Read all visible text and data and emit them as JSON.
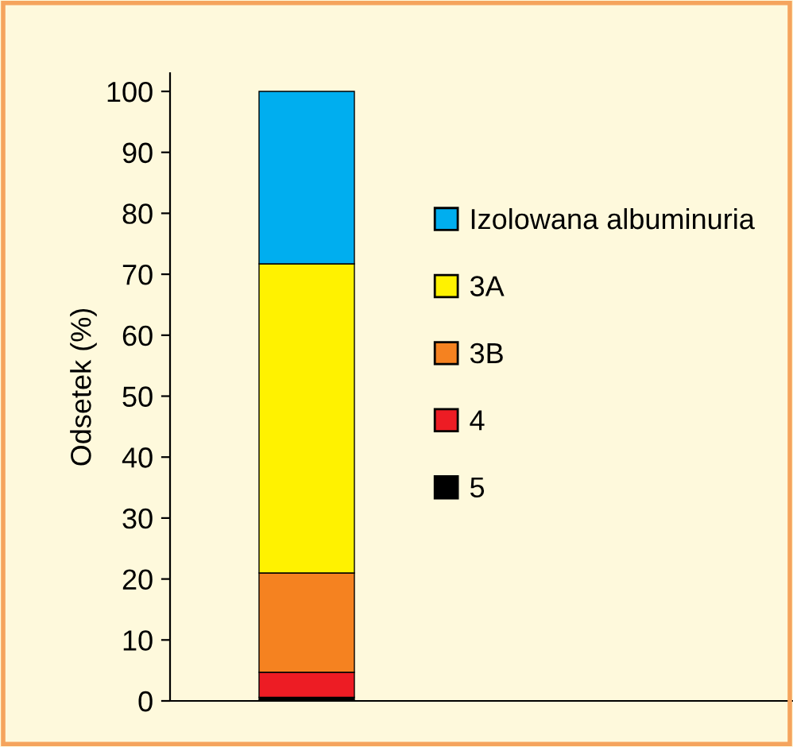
{
  "chart_data": {
    "type": "bar",
    "stacked": true,
    "ylabel": "Odsetek (%)",
    "categories": [
      null
    ],
    "series": [
      {
        "name": "5",
        "color": "#000000",
        "values": [
          0.6
        ]
      },
      {
        "name": "4",
        "color": "#ed1c24",
        "values": [
          4.1
        ]
      },
      {
        "name": "3B",
        "color": "#f58220",
        "values": [
          16.3
        ]
      },
      {
        "name": "3A",
        "color": "#fff200",
        "values": [
          50.7
        ]
      },
      {
        "name": "Izolowana albuminuria",
        "color": "#00aeef",
        "values": [
          28.3
        ]
      }
    ],
    "ylim": [
      0,
      103
    ],
    "yticks": [
      0,
      10,
      20,
      30,
      40,
      50,
      60,
      70,
      80,
      90,
      100
    ],
    "grid": false,
    "legend": "right"
  }
}
